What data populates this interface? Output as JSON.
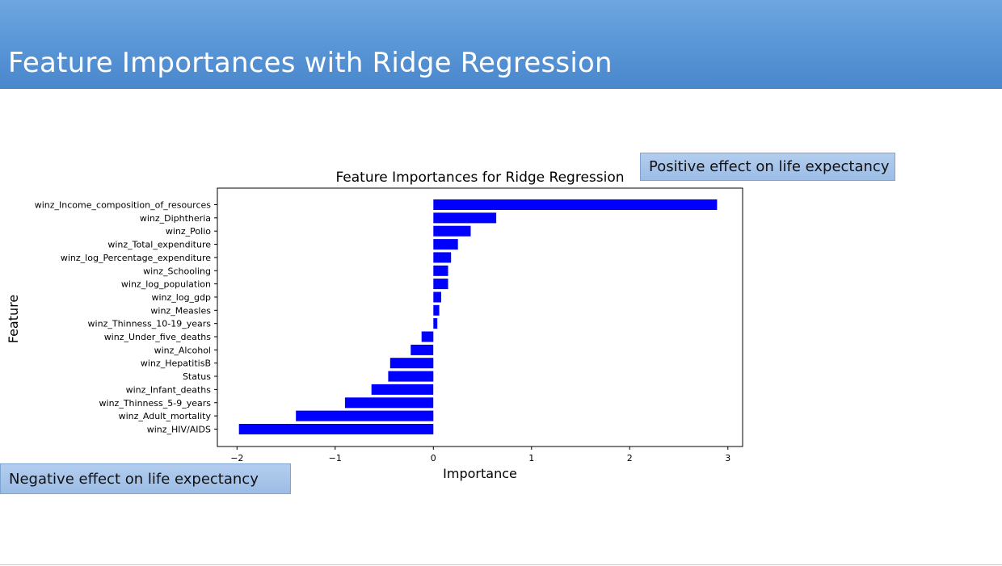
{
  "slide": {
    "title": "Feature Importances with Ridge Regression",
    "positive_callout": "Positive  effect on life expectancy",
    "negative_callout": "Negative effect on life expectancy"
  },
  "chart_data": {
    "type": "bar",
    "orientation": "horizontal",
    "title": "Feature Importances for Ridge Regression",
    "xlabel": "Importance",
    "ylabel": "Feature",
    "xlim": [
      -2.2,
      3.15
    ],
    "xticks": [
      -2,
      -1,
      0,
      1,
      2,
      3
    ],
    "xtick_labels": [
      "−2",
      "−1",
      "0",
      "1",
      "2",
      "3"
    ],
    "grid": false,
    "bar_color": "#0000ff",
    "categories": [
      "winz_Income_composition_of_resources",
      "winz_Diphtheria",
      "winz_Polio",
      "winz_Total_expenditure",
      "winz_log_Percentage_expenditure",
      "winz_Schooling",
      "winz_log_population",
      "winz_log_gdp",
      "winz_Measles",
      "winz_Thinness_10-19_years",
      "winz_Under_five_deaths",
      "winz_Alcohol",
      "winz_HepatitisB",
      "Status",
      "winz_Infant_deaths",
      "winz_Thinness_5-9_years",
      "winz_Adult_mortality",
      "winz_HIV/AIDS"
    ],
    "values": [
      2.89,
      0.64,
      0.38,
      0.25,
      0.18,
      0.15,
      0.15,
      0.08,
      0.06,
      0.04,
      -0.12,
      -0.23,
      -0.44,
      -0.46,
      -0.63,
      -0.9,
      -1.4,
      -1.98
    ]
  }
}
